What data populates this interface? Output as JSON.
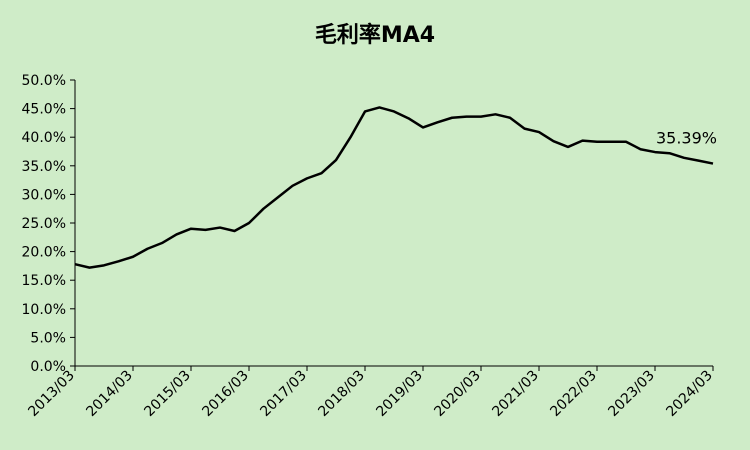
{
  "chart_data": {
    "type": "line",
    "title": "毛利率MA4",
    "categories": [
      "2013/03",
      null,
      null,
      null,
      "2014/03",
      null,
      null,
      null,
      "2015/03",
      null,
      null,
      null,
      "2016/03",
      null,
      null,
      null,
      "2017/03",
      null,
      null,
      null,
      "2018/03",
      null,
      null,
      null,
      "2019/03",
      null,
      null,
      null,
      "2020/03",
      null,
      null,
      null,
      "2021/03",
      null,
      null,
      null,
      "2022/03",
      null,
      null,
      null,
      "2023/03",
      null,
      null,
      null,
      "2024/03"
    ],
    "values": [
      17.8,
      17.2,
      17.6,
      18.3,
      19.1,
      20.5,
      21.5,
      23.0,
      24.0,
      23.8,
      24.2,
      23.6,
      25.0,
      27.5,
      29.5,
      31.5,
      32.8,
      33.7,
      36.0,
      40.0,
      44.5,
      45.2,
      44.5,
      43.3,
      41.7,
      42.6,
      43.4,
      43.6,
      43.6,
      44.0,
      43.4,
      41.5,
      40.9,
      39.3,
      38.3,
      39.4,
      39.2,
      39.2,
      39.2,
      37.9,
      37.4,
      37.2,
      36.4,
      35.9,
      35.39
    ],
    "value_labels": [
      null,
      null,
      null,
      null,
      null,
      null,
      null,
      null,
      null,
      null,
      null,
      null,
      null,
      null,
      null,
      null,
      null,
      null,
      null,
      null,
      null,
      null,
      null,
      null,
      null,
      null,
      null,
      null,
      null,
      null,
      null,
      null,
      null,
      null,
      null,
      null,
      null,
      null,
      null,
      null,
      null,
      null,
      null,
      null,
      "35.39%"
    ],
    "color": "#000000",
    "ylim": [
      0,
      50
    ],
    "yticks": [
      {
        "value": 0,
        "label": "0.0%"
      },
      {
        "value": 5,
        "label": "5.0%"
      },
      {
        "value": 10,
        "label": "10.0%"
      },
      {
        "value": 15,
        "label": "15.0%"
      },
      {
        "value": 20,
        "label": "20.0%"
      },
      {
        "value": 25,
        "label": "25.0%"
      },
      {
        "value": 30,
        "label": "30.0%"
      },
      {
        "value": 35,
        "label": "35.0%"
      },
      {
        "value": 40,
        "label": "40.0%"
      },
      {
        "value": 45,
        "label": "45.0%"
      },
      {
        "value": 50,
        "label": "50.0%"
      }
    ],
    "grid": false
  }
}
